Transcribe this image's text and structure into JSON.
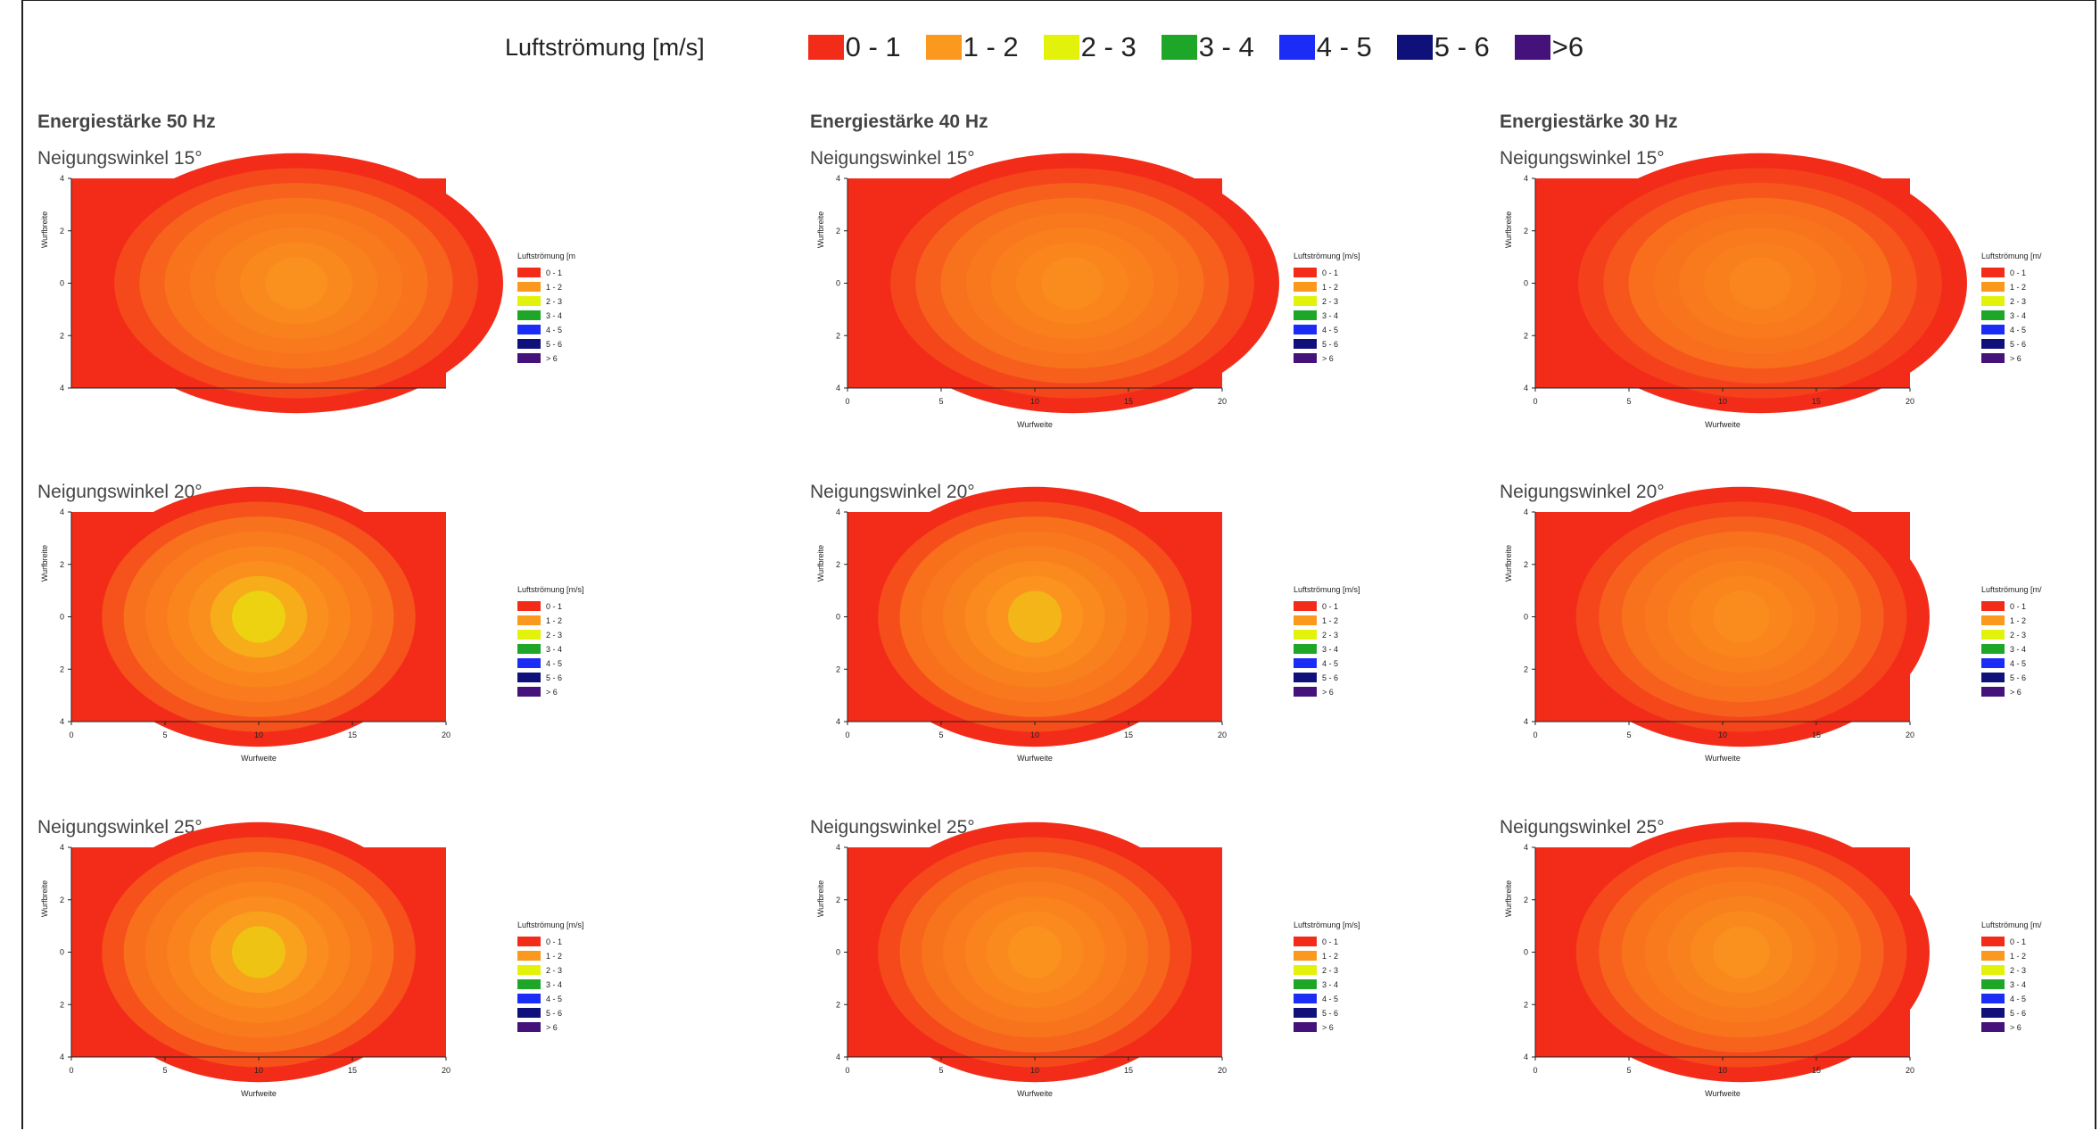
{
  "legend": {
    "title": "Luftströmung [m/s]",
    "items": [
      {
        "label": "0 - 1",
        "color": "#f32c1a"
      },
      {
        "label": "1 - 2",
        "color": "#fb981e"
      },
      {
        "label": "2 - 3",
        "color": "#e3f20a"
      },
      {
        "label": "3 - 4",
        "color": "#1ea629"
      },
      {
        "label": "4 - 5",
        "color": "#1a2cf5"
      },
      {
        "label": "5 - 6",
        "color": "#10107a"
      },
      {
        "label": ">6",
        "color": "#44127a"
      }
    ]
  },
  "columns": [
    {
      "title": "Energiestärke 50 Hz"
    },
    {
      "title": "Energiestärke 40 Hz"
    },
    {
      "title": "Energiestärke 30 Hz"
    }
  ],
  "rows": [
    {
      "title": "Neigungswinkel 15°"
    },
    {
      "title": "Neigungswinkel 20°"
    },
    {
      "title": "Neigungswinkel 25°"
    }
  ],
  "chart_data": [
    {
      "type": "heatmap",
      "frequency": "Energiestärke 50 Hz",
      "angle": "Neigungswinkel 15°",
      "xlabel": "",
      "ylabel": "Wurfbreite",
      "x_ticks": [],
      "y_ticks": [
        "4",
        "2",
        "0",
        "2",
        "4"
      ],
      "xlim": [
        0,
        20
      ],
      "ylim": [
        -4,
        4
      ],
      "peak_x": 12,
      "peak_class": "1 - 2",
      "peak_value": 1.9,
      "legend_title": "Luftströmung [m",
      "legend_labels": [
        "0 - 1",
        "1 - 2",
        "2 - 3",
        "3 - 4",
        "4 - 5",
        "5 - 6",
        "> 6"
      ]
    },
    {
      "type": "heatmap",
      "frequency": "Energiestärke 40 Hz",
      "angle": "Neigungswinkel 15°",
      "xlabel": "Wurfweite",
      "ylabel": "Wurfbreite",
      "x_ticks": [
        "0",
        "5",
        "10",
        "15",
        "20"
      ],
      "y_ticks": [
        "4",
        "2",
        "0",
        "2",
        "4"
      ],
      "xlim": [
        0,
        20
      ],
      "ylim": [
        -4,
        4
      ],
      "peak_x": 12,
      "peak_class": "1 - 2",
      "peak_value": 1.8,
      "legend_title": "Luftströmung [m/s]",
      "legend_labels": [
        "0 - 1",
        "1 - 2",
        "2 - 3",
        "3 - 4",
        "4 - 5",
        "5 - 6",
        "> 6"
      ]
    },
    {
      "type": "heatmap",
      "frequency": "Energiestärke 30 Hz",
      "angle": "Neigungswinkel 15°",
      "xlabel": "Wurfweite",
      "ylabel": "Wurfbreite",
      "x_ticks": [
        "0",
        "5",
        "10",
        "15",
        "20"
      ],
      "y_ticks": [
        "4",
        "2",
        "0",
        "2",
        "4"
      ],
      "xlim": [
        0,
        20
      ],
      "ylim": [
        -4,
        4
      ],
      "peak_x": 12,
      "peak_class": "1 - 2",
      "peak_value": 1.6,
      "legend_title": "Luftströmung [m/",
      "legend_labels": [
        "0 - 1",
        "1 - 2",
        "2 - 3",
        "3 - 4",
        "4 - 5",
        "5 - 6",
        "> 6"
      ]
    },
    {
      "type": "heatmap",
      "frequency": "Energiestärke 50 Hz",
      "angle": "Neigungswinkel 20°",
      "xlabel": "Wurfweite",
      "ylabel": "Wurfbreite",
      "x_ticks": [
        "0",
        "5",
        "10",
        "15",
        "20"
      ],
      "y_ticks": [
        "4",
        "2",
        "0",
        "2",
        "4"
      ],
      "xlim": [
        0,
        20
      ],
      "ylim": [
        -4,
        4
      ],
      "peak_x": 10,
      "peak_class": "2 - 3",
      "peak_value": 2.4,
      "legend_title": "Luftströmung [m/s]",
      "legend_labels": [
        "0 - 1",
        "1 - 2",
        "2 - 3",
        "3 - 4",
        "4 - 5",
        "5 - 6",
        "> 6"
      ]
    },
    {
      "type": "heatmap",
      "frequency": "Energiestärke 40 Hz",
      "angle": "Neigungswinkel 20°",
      "xlabel": "Wurfweite",
      "ylabel": "Wurfbreite",
      "x_ticks": [
        "0",
        "5",
        "10",
        "15",
        "20"
      ],
      "y_ticks": [
        "4",
        "2",
        "0",
        "2",
        "4"
      ],
      "xlim": [
        0,
        20
      ],
      "ylim": [
        -4,
        4
      ],
      "peak_x": 10,
      "peak_class": "2 - 3",
      "peak_value": 2.2,
      "legend_title": "Luftströmung [m/s]",
      "legend_labels": [
        "0 - 1",
        "1 - 2",
        "2 - 3",
        "3 - 4",
        "4 - 5",
        "5 - 6",
        "> 6"
      ]
    },
    {
      "type": "heatmap",
      "frequency": "Energiestärke 30 Hz",
      "angle": "Neigungswinkel 20°",
      "xlabel": "Wurfweite",
      "ylabel": "Wurfbreite",
      "x_ticks": [
        "0",
        "5",
        "10",
        "15",
        "20"
      ],
      "y_ticks": [
        "4",
        "2",
        "0",
        "2",
        "4"
      ],
      "xlim": [
        0,
        20
      ],
      "ylim": [
        -4,
        4
      ],
      "peak_x": 11,
      "peak_class": "1 - 2",
      "peak_value": 1.8,
      "legend_title": "Luftströmung [m/",
      "legend_labels": [
        "0 - 1",
        "1 - 2",
        "2 - 3",
        "3 - 4",
        "4 - 5",
        "5 - 6",
        "> 6"
      ]
    },
    {
      "type": "heatmap",
      "frequency": "Energiestärke 50 Hz",
      "angle": "Neigungswinkel 25°",
      "xlabel": "Wurfweite",
      "ylabel": "Wurfbreite",
      "x_ticks": [
        "0",
        "5",
        "10",
        "15",
        "20"
      ],
      "y_ticks": [
        "4",
        "2",
        "0",
        "2",
        "4"
      ],
      "xlim": [
        0,
        20
      ],
      "ylim": [
        -4,
        4
      ],
      "peak_x": 10,
      "peak_class": "2 - 3",
      "peak_value": 2.3,
      "legend_title": "Luftströmung [m/s]",
      "legend_labels": [
        "0 - 1",
        "1 - 2",
        "2 - 3",
        "3 - 4",
        "4 - 5",
        "5 - 6",
        "> 6"
      ]
    },
    {
      "type": "heatmap",
      "frequency": "Energiestärke 40 Hz",
      "angle": "Neigungswinkel 25°",
      "xlabel": "Wurfweite",
      "ylabel": "Wurfbreite",
      "x_ticks": [
        "0",
        "5",
        "10",
        "15",
        "20"
      ],
      "y_ticks": [
        "4",
        "2",
        "0",
        "2",
        "4"
      ],
      "xlim": [
        0,
        20
      ],
      "ylim": [
        -4,
        4
      ],
      "peak_x": 10,
      "peak_class": "1 - 2",
      "peak_value": 1.95,
      "legend_title": "Luftströmung [m/s]",
      "legend_labels": [
        "0 - 1",
        "1 - 2",
        "2 - 3",
        "3 - 4",
        "4 - 5",
        "5 - 6",
        "> 6"
      ]
    },
    {
      "type": "heatmap",
      "frequency": "Energiestärke 30 Hz",
      "angle": "Neigungswinkel 25°",
      "xlabel": "Wurfweite",
      "ylabel": "Wurfbreite",
      "x_ticks": [
        "0",
        "5",
        "10",
        "15",
        "20"
      ],
      "y_ticks": [
        "4",
        "2",
        "0",
        "2",
        "4"
      ],
      "xlim": [
        0,
        20
      ],
      "ylim": [
        -4,
        4
      ],
      "peak_x": 11,
      "peak_class": "1 - 2",
      "peak_value": 1.9,
      "legend_title": "Luftströmung [m/",
      "legend_labels": [
        "0 - 1",
        "1 - 2",
        "2 - 3",
        "3 - 4",
        "4 - 5",
        "5 - 6",
        "> 6"
      ]
    }
  ]
}
